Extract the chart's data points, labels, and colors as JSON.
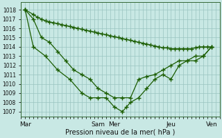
{
  "xlabel": "Pression niveau de la mer( hPa )",
  "bg_color": "#c8e8e4",
  "grid_color": "#99c4c0",
  "line_color": "#1a5c00",
  "marker": "+",
  "markersize": 4,
  "linewidth": 0.9,
  "ylim": [
    1006.5,
    1018.8
  ],
  "yticks": [
    1007,
    1008,
    1009,
    1010,
    1011,
    1012,
    1013,
    1014,
    1015,
    1016,
    1017,
    1018
  ],
  "xtick_labels": [
    "Mar",
    "Sam",
    "Mer",
    "Jeu",
    "Ven"
  ],
  "xtick_positions": [
    0,
    18,
    22,
    36,
    46
  ],
  "xlim": [
    -1,
    48
  ],
  "line1_x": [
    0,
    2,
    3,
    4,
    5,
    6,
    7,
    8,
    9,
    10,
    11,
    12,
    13,
    14,
    15,
    16,
    17,
    18,
    19,
    20,
    21,
    22,
    23,
    24,
    25,
    26,
    27,
    28,
    29,
    30,
    31,
    32,
    33,
    34,
    35,
    36,
    37,
    38,
    39,
    40,
    41,
    42,
    43,
    44,
    45,
    46
  ],
  "line1_y": [
    1018.0,
    1017.5,
    1017.2,
    1017.0,
    1016.8,
    1016.7,
    1016.6,
    1016.5,
    1016.4,
    1016.3,
    1016.2,
    1016.1,
    1016.0,
    1015.9,
    1015.8,
    1015.7,
    1015.6,
    1015.5,
    1015.4,
    1015.3,
    1015.2,
    1015.1,
    1015.0,
    1014.9,
    1014.8,
    1014.7,
    1014.6,
    1014.5,
    1014.4,
    1014.3,
    1014.2,
    1014.1,
    1014.0,
    1013.9,
    1013.9,
    1013.8,
    1013.8,
    1013.8,
    1013.8,
    1013.8,
    1013.8,
    1013.9,
    1014.0,
    1014.0,
    1014.0,
    1014.0
  ],
  "line2_x": [
    0,
    2,
    4,
    6,
    8,
    10,
    12,
    14,
    16,
    18,
    20,
    22,
    24,
    26,
    28,
    30,
    32,
    34,
    36,
    38,
    40,
    42,
    44,
    46
  ],
  "line2_y": [
    1018.0,
    1017.0,
    1015.0,
    1014.5,
    1013.5,
    1012.5,
    1011.5,
    1011.0,
    1010.5,
    1009.5,
    1009.0,
    1008.5,
    1008.5,
    1008.5,
    1010.5,
    1010.8,
    1011.0,
    1011.5,
    1012.0,
    1012.5,
    1012.5,
    1013.0,
    1013.0,
    1014.0
  ],
  "line3_x": [
    0,
    2,
    5,
    8,
    11,
    14,
    16,
    18,
    20,
    22,
    24,
    25,
    26,
    28,
    30,
    32,
    34,
    36,
    38,
    40,
    42,
    44,
    46
  ],
  "line3_y": [
    1018.0,
    1014.0,
    1013.0,
    1011.5,
    1010.5,
    1009.0,
    1008.5,
    1008.5,
    1008.5,
    1007.5,
    1007.0,
    1007.5,
    1008.0,
    1008.5,
    1009.5,
    1010.5,
    1011.0,
    1010.5,
    1012.0,
    1012.5,
    1012.5,
    1013.0,
    1014.0
  ]
}
